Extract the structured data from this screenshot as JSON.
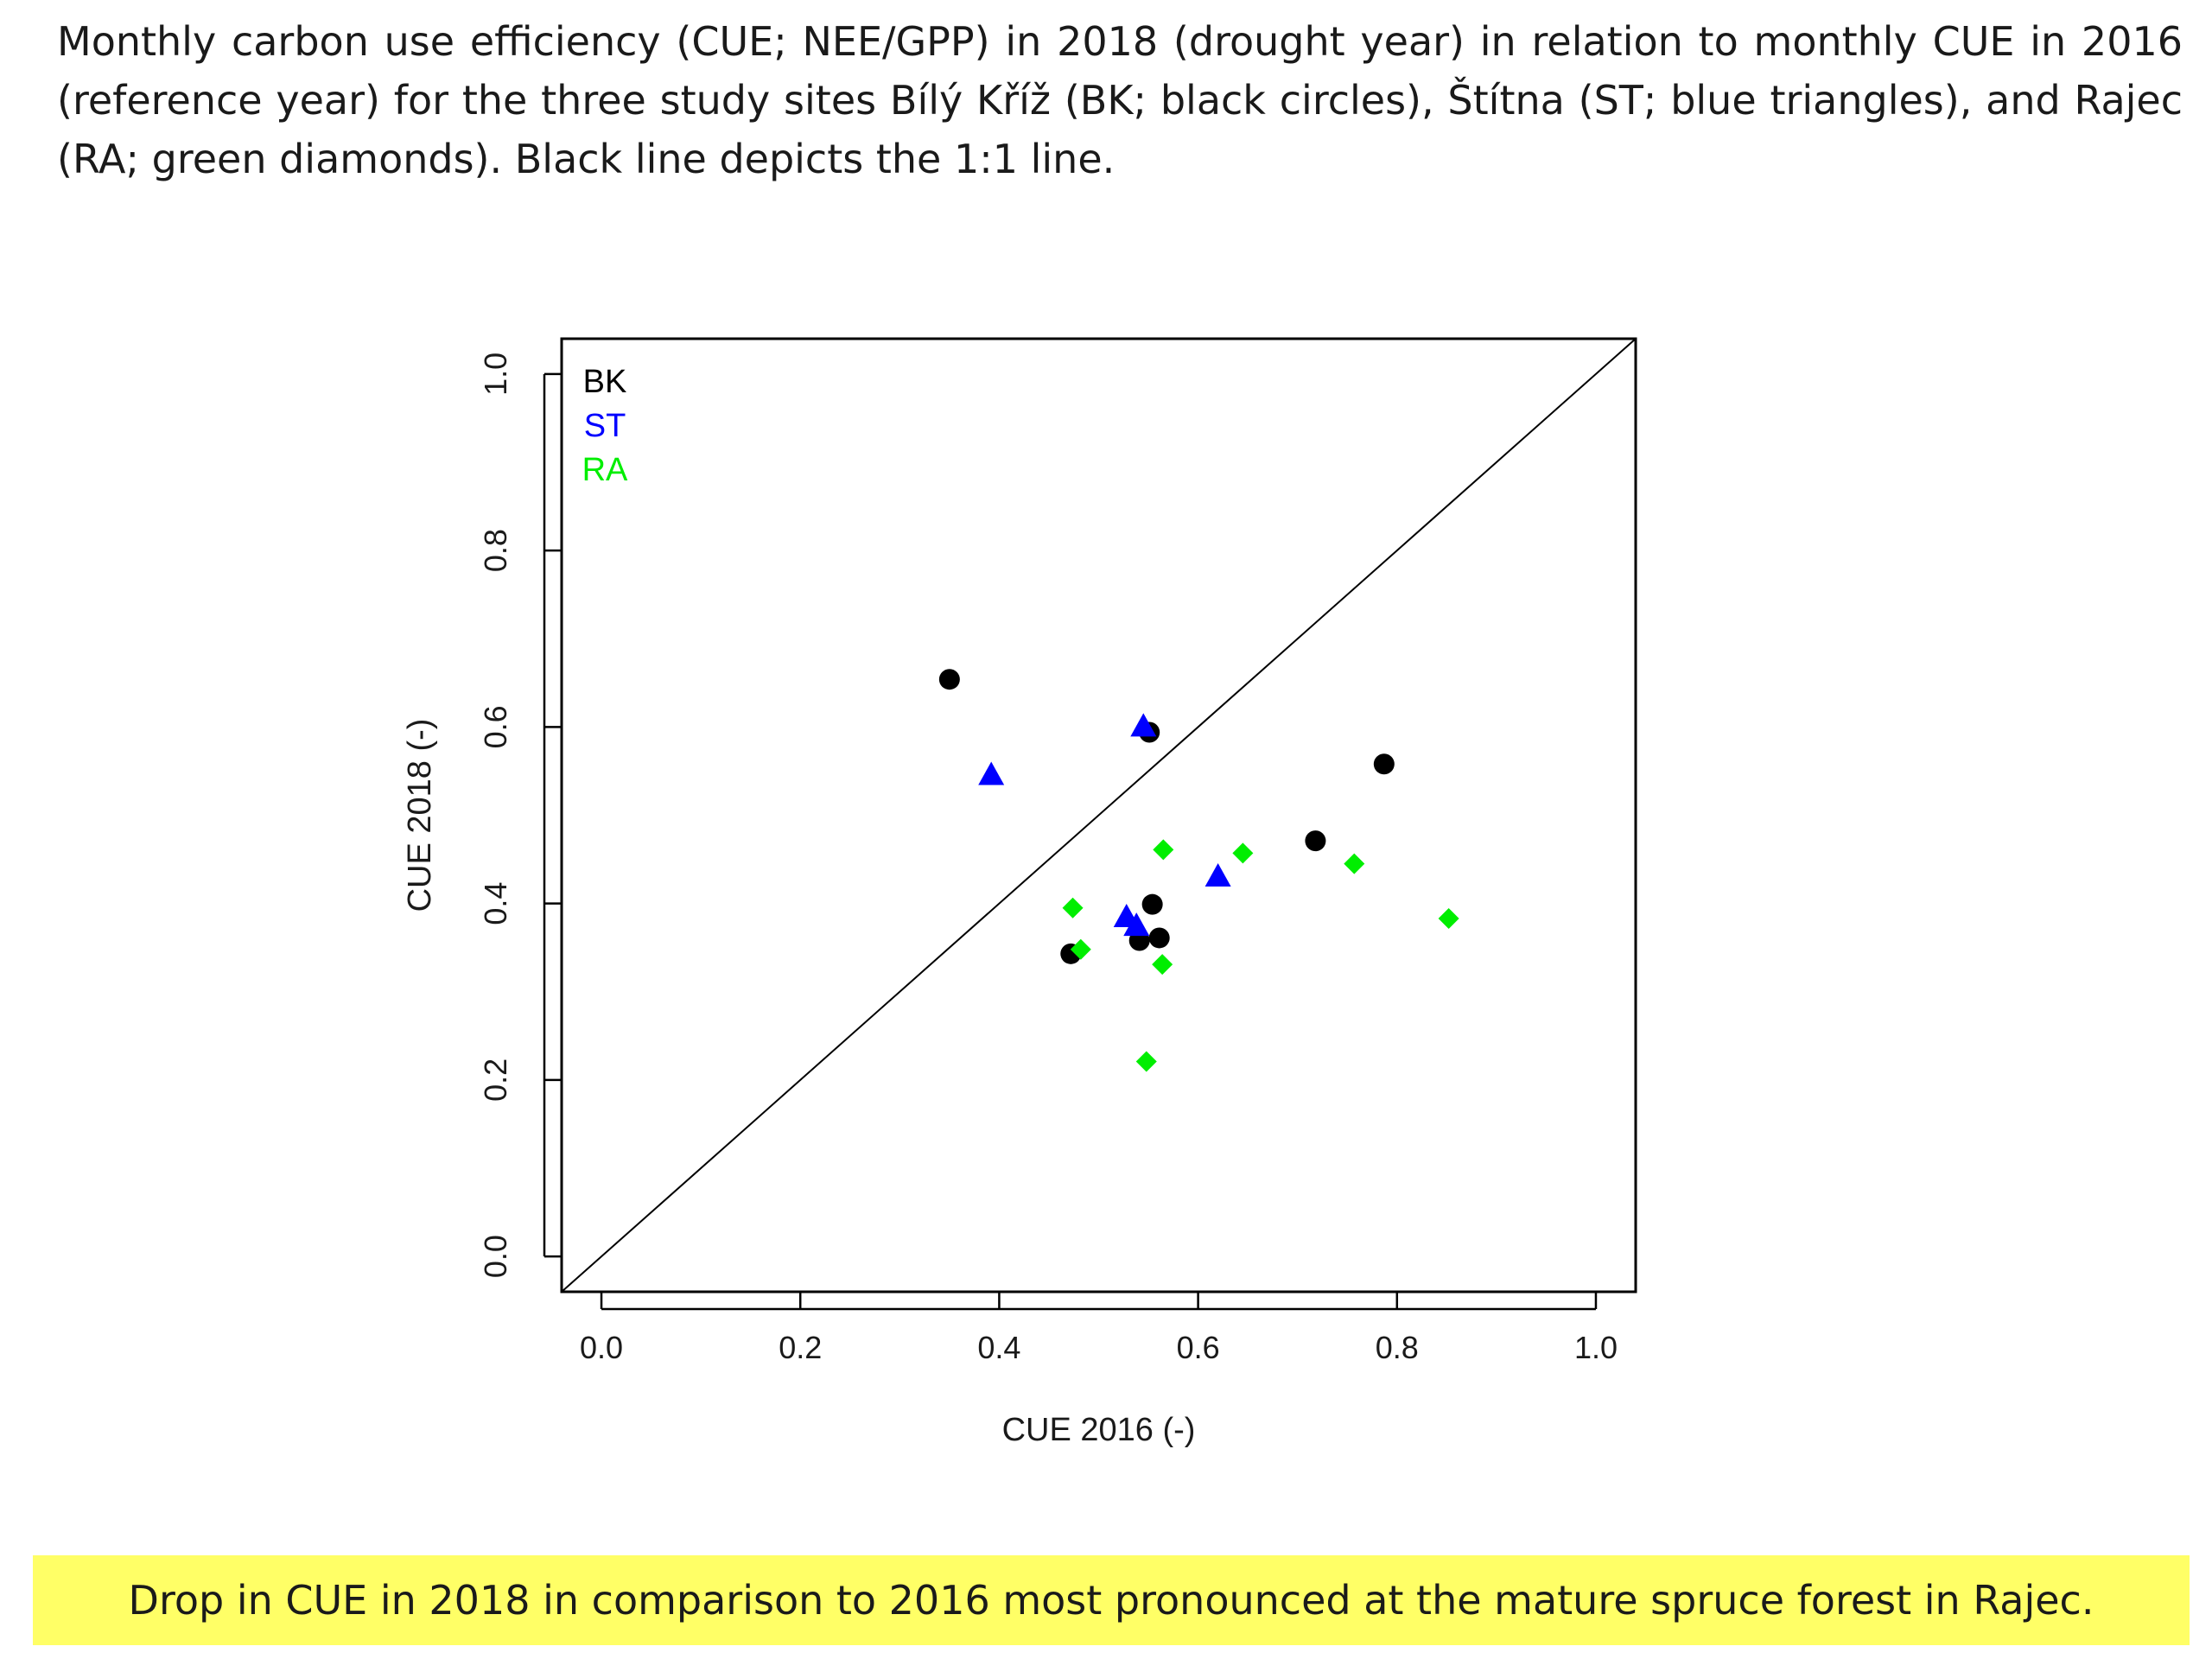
{
  "caption": "Monthly carbon use efficiency (CUE; NEE/GPP) in 2018 (drought year) in relation to monthly CUE in 2016 (reference year) for the three study sites Bílý Kříž (BK; black circles), Štítna (ST; blue triangles), and Rajec (RA; green diamonds). Black line depicts the 1:1 line.",
  "conclusion": "Drop in CUE in 2018 in comparison to 2016 most pronounced at the mature spruce forest in Rajec.",
  "chart_data": {
    "type": "scatter",
    "title": "",
    "xlabel": "CUE 2016 (-)",
    "ylabel": "CUE 2018 (-)",
    "xlim": [
      -0.04,
      1.04
    ],
    "ylim": [
      -0.04,
      1.04
    ],
    "x_ticks": [
      "0.0",
      "0.2",
      "0.4",
      "0.6",
      "0.8",
      "1.0"
    ],
    "y_ticks": [
      "0.0",
      "0.2",
      "0.4",
      "0.6",
      "0.8",
      "1.0"
    ],
    "reference_line": "1:1",
    "legend_position": "top-left",
    "series": [
      {
        "name": "BK",
        "marker": "circle",
        "color": "#000000",
        "points": [
          {
            "x": 0.35,
            "y": 0.654
          },
          {
            "x": 0.551,
            "y": 0.594
          },
          {
            "x": 0.787,
            "y": 0.558
          },
          {
            "x": 0.718,
            "y": 0.471
          },
          {
            "x": 0.554,
            "y": 0.399
          },
          {
            "x": 0.561,
            "y": 0.361
          },
          {
            "x": 0.541,
            "y": 0.358
          },
          {
            "x": 0.472,
            "y": 0.343
          }
        ]
      },
      {
        "name": "ST",
        "marker": "triangle",
        "color": "#0000ff",
        "points": [
          {
            "x": 0.545,
            "y": 0.6
          },
          {
            "x": 0.392,
            "y": 0.545
          },
          {
            "x": 0.62,
            "y": 0.43
          },
          {
            "x": 0.528,
            "y": 0.384
          },
          {
            "x": 0.538,
            "y": 0.374
          }
        ]
      },
      {
        "name": "RA",
        "marker": "diamond",
        "color": "#00ee00",
        "points": [
          {
            "x": 0.565,
            "y": 0.461
          },
          {
            "x": 0.645,
            "y": 0.457
          },
          {
            "x": 0.757,
            "y": 0.445
          },
          {
            "x": 0.474,
            "y": 0.395
          },
          {
            "x": 0.482,
            "y": 0.348
          },
          {
            "x": 0.852,
            "y": 0.383
          },
          {
            "x": 0.564,
            "y": 0.331
          },
          {
            "x": 0.548,
            "y": 0.221
          }
        ]
      }
    ]
  }
}
